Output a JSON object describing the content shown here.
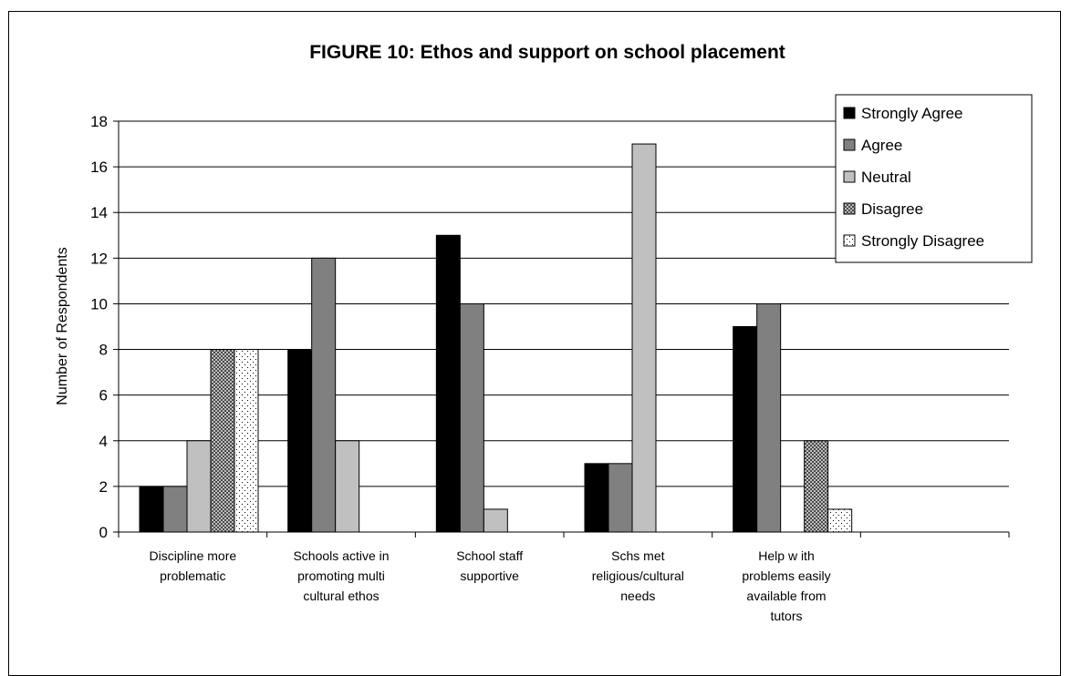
{
  "chart_data": {
    "type": "bar",
    "title": "FIGURE 10: Ethos and support on school placement",
    "ylabel": "Number of Respondents",
    "xlabel": "",
    "ylim": [
      0,
      18
    ],
    "yticks": [
      0,
      2,
      4,
      6,
      8,
      10,
      12,
      14,
      16,
      18
    ],
    "grid": true,
    "legend_position": "top-right",
    "categories": [
      [
        "Discipline more",
        "problematic"
      ],
      [
        "Schools active in",
        "promoting multi",
        "cultural ethos"
      ],
      [
        "School staff",
        "supportive"
      ],
      [
        "Schs met",
        "religious/cultural",
        "needs"
      ],
      [
        "Help w ith",
        "problems easily",
        "available from",
        "tutors"
      ],
      [
        ""
      ]
    ],
    "series": [
      {
        "name": "Strongly Agree",
        "pattern": "solid-black",
        "values": [
          2,
          8,
          13,
          3,
          9,
          null
        ]
      },
      {
        "name": "Agree",
        "pattern": "solid-darkgray",
        "values": [
          2,
          12,
          10,
          3,
          10,
          null
        ]
      },
      {
        "name": "Neutral",
        "pattern": "solid-lightgray",
        "values": [
          4,
          4,
          1,
          17,
          null,
          null
        ]
      },
      {
        "name": "Disagree",
        "pattern": "crosshatch",
        "values": [
          8,
          null,
          null,
          null,
          4,
          null
        ]
      },
      {
        "name": "Strongly Disagree",
        "pattern": "dots",
        "values": [
          8,
          null,
          null,
          null,
          1,
          null
        ]
      }
    ]
  }
}
